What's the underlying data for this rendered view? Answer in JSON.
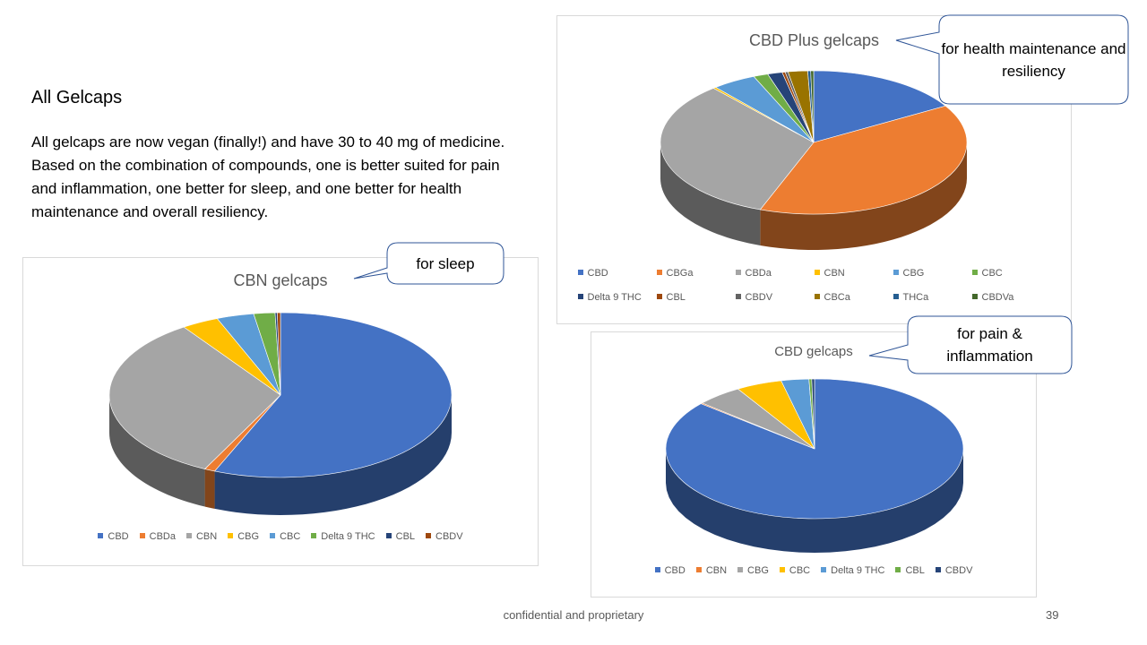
{
  "slide": {
    "heading": "All Gelcaps",
    "paragraph": "All gelcaps are now vegan (finally!) and have 30 to 40 mg of medicine.  Based on the combination of compounds, one is better suited for pain and inflammation, one better for sleep, and one better for health maintenance and overall resiliency.",
    "footer": "confidential and proprietary",
    "page_number": "39"
  },
  "callouts": {
    "plus": "for health maintenance and resiliency",
    "cbn": "for sleep",
    "cbd": "for pain & inflammation"
  },
  "chart_data": [
    {
      "type": "pie",
      "style": "3d",
      "title": "CBN gelcaps",
      "legend": "bottom",
      "categories": [
        "CBD",
        "CBDa",
        "CBN",
        "CBG",
        "CBC",
        "Delta 9 THC",
        "CBL",
        "CBDV"
      ],
      "values": [
        56,
        1,
        33,
        3.5,
        3.5,
        2,
        0.2,
        0.3
      ],
      "colors": [
        "#4472c4",
        "#ed7d31",
        "#a5a5a5",
        "#ffc000",
        "#5b9bd5",
        "#70ad47",
        "#264478",
        "#9e480e"
      ]
    },
    {
      "type": "pie",
      "style": "3d",
      "title": "CBD Plus gelcaps",
      "legend": "bottom",
      "categories": [
        "CBD",
        "CBGa",
        "CBDa",
        "CBN",
        "CBG",
        "CBC",
        "Delta 9 THC",
        "CBL",
        "CBDV",
        "CBCa",
        "THCa",
        "CBDVa"
      ],
      "values": [
        16,
        38,
        32,
        0.3,
        4.5,
        1.5,
        1.5,
        0.3,
        0.3,
        2,
        0.3,
        0.3
      ],
      "colors": [
        "#4472c4",
        "#ed7d31",
        "#a5a5a5",
        "#ffc000",
        "#5b9bd5",
        "#70ad47",
        "#264478",
        "#9e480e",
        "#636363",
        "#997300",
        "#255e91",
        "#43682b"
      ]
    },
    {
      "type": "pie",
      "style": "3d",
      "title": "CBD gelcaps",
      "legend": "bottom",
      "categories": [
        "CBD",
        "CBN",
        "CBG",
        "CBC",
        "Delta 9 THC",
        "CBL",
        "CBDV"
      ],
      "values": [
        86,
        0.2,
        5,
        5,
        3,
        0.3,
        0.3
      ],
      "colors": [
        "#4472c4",
        "#ed7d31",
        "#a5a5a5",
        "#ffc000",
        "#5b9bd5",
        "#70ad47",
        "#264478"
      ]
    }
  ]
}
